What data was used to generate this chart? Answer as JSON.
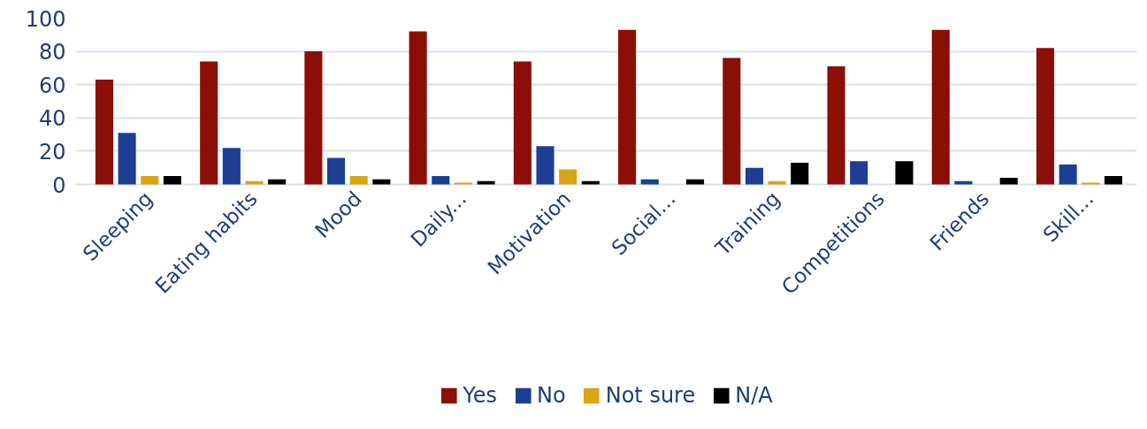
{
  "chart_data": {
    "type": "bar",
    "categories": [
      "Sleeping",
      "Eating habits",
      "Mood",
      "Daily...",
      "Motivation",
      "Social...",
      "Training",
      "Competitions",
      "Friends",
      "Skill..."
    ],
    "series": [
      {
        "name": "Yes",
        "color": "#8b0f06",
        "values": [
          63,
          74,
          80,
          92,
          74,
          93,
          76,
          71,
          93,
          82
        ]
      },
      {
        "name": "No",
        "color": "#1c3f94",
        "values": [
          31,
          22,
          16,
          5,
          23,
          3,
          10,
          14,
          2,
          12
        ]
      },
      {
        "name": "Not sure",
        "color": "#d9a514",
        "values": [
          5,
          2,
          5,
          1,
          9,
          0,
          2,
          0,
          0,
          1
        ]
      },
      {
        "name": "N/A",
        "color": "#000000",
        "values": [
          5,
          3,
          3,
          2,
          2,
          3,
          13,
          14,
          4,
          5
        ]
      }
    ],
    "ylim": [
      0,
      100
    ],
    "yticks": [
      0,
      20,
      40,
      60,
      80,
      100
    ],
    "grid": "y",
    "legend": "bottom"
  }
}
